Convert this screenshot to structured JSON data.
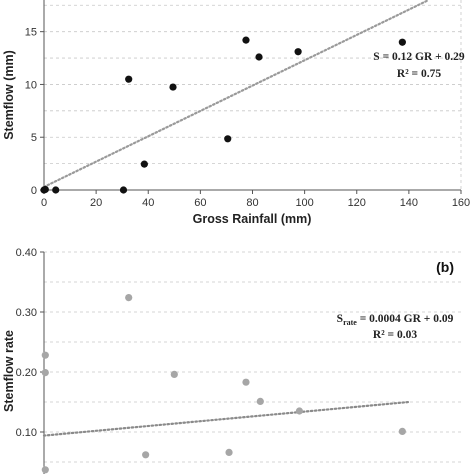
{
  "chart_data": [
    {
      "type": "scatter",
      "panel_label": "",
      "xlabel": "Gross Rainfall (mm)",
      "ylabel": "Stemflow (mm)",
      "xlim": [
        0,
        160
      ],
      "ylim": [
        0,
        18
      ],
      "x_ticks": [
        0,
        20,
        40,
        60,
        80,
        100,
        120,
        140,
        160
      ],
      "y_ticks": [
        0,
        5,
        10,
        15
      ],
      "grid": "horizontal dashed",
      "point_color": "#111111",
      "trend_color": "#9a9a9a",
      "trendline": {
        "slope": 0.12,
        "intercept": 0.29
      },
      "equation_main": "S = 0.12 GR + 0.29",
      "equation_r2": "R² = 0.75",
      "points": [
        {
          "x": 0,
          "y": 0
        },
        {
          "x": 0.5,
          "y": 0.05
        },
        {
          "x": 4.5,
          "y": 0
        },
        {
          "x": 30.5,
          "y": 0
        },
        {
          "x": 32.5,
          "y": 10.5
        },
        {
          "x": 38.5,
          "y": 2.45
        },
        {
          "x": 49.5,
          "y": 9.75
        },
        {
          "x": 70.5,
          "y": 4.85
        },
        {
          "x": 77.5,
          "y": 14.2
        },
        {
          "x": 82.5,
          "y": 12.6
        },
        {
          "x": 97.5,
          "y": 13.1
        },
        {
          "x": 137.5,
          "y": 14
        }
      ]
    },
    {
      "type": "scatter",
      "panel_label": "(b)",
      "xlabel": "",
      "ylabel": "Stemflow rate",
      "xlim": [
        0,
        160
      ],
      "ylim": [
        0.03,
        0.4
      ],
      "y_ticks_labels": [
        "0.40",
        "0.30",
        "0.20",
        "0.10"
      ],
      "y_ticks": [
        0.4,
        0.3,
        0.2,
        0.1
      ],
      "grid": "horizontal dashed",
      "point_color": "#a6a6a6",
      "trend_color": "#8a8a8a",
      "trendline": {
        "slope": 0.0004,
        "intercept": 0.094
      },
      "equation_prefix": "S",
      "equation_sub": "rate",
      "equation_rest": " = 0.0004 GR + 0.09",
      "equation_r2": "R² = 0.03",
      "points": [
        {
          "x": 0.5,
          "y": 0.228
        },
        {
          "x": 0.5,
          "y": 0.199
        },
        {
          "x": 0.5,
          "y": 0.037
        },
        {
          "x": 32.5,
          "y": 0.324
        },
        {
          "x": 39,
          "y": 0.062
        },
        {
          "x": 50,
          "y": 0.196
        },
        {
          "x": 71,
          "y": 0.066
        },
        {
          "x": 77.5,
          "y": 0.183
        },
        {
          "x": 83,
          "y": 0.151
        },
        {
          "x": 98,
          "y": 0.135
        },
        {
          "x": 137.5,
          "y": 0.101
        }
      ]
    }
  ]
}
